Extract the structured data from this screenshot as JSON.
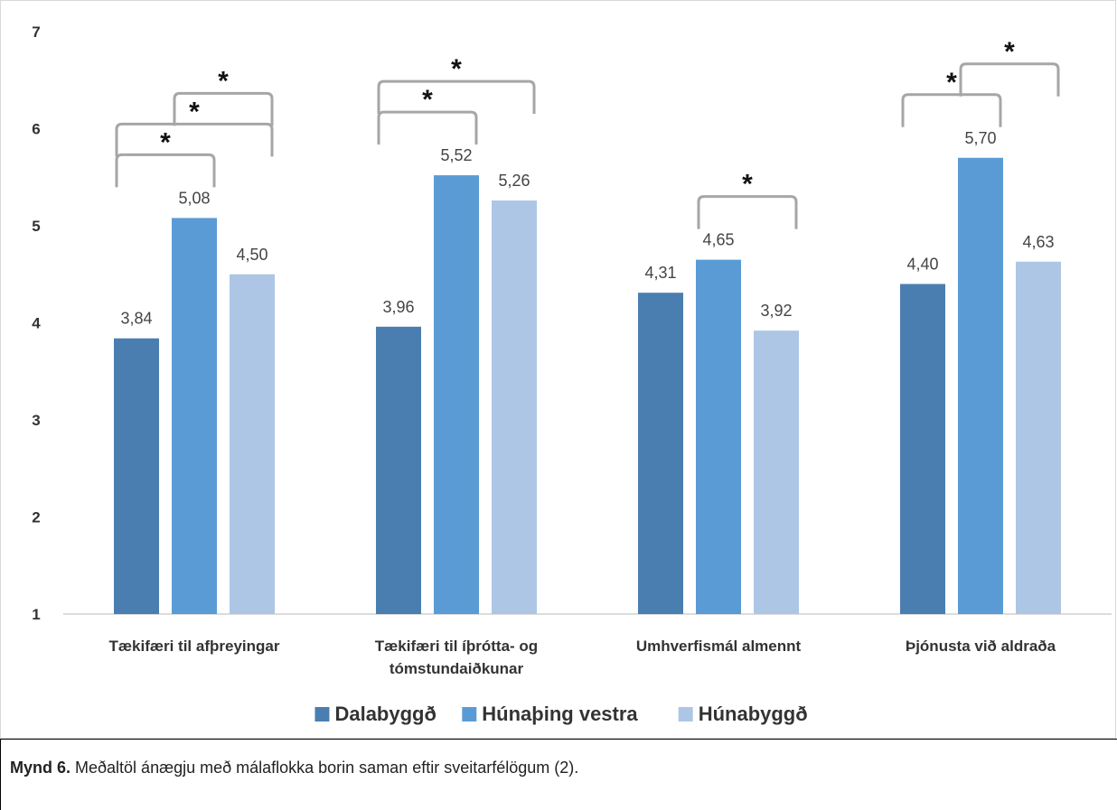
{
  "chart_data": {
    "type": "bar",
    "categories": [
      [
        "Tækifæri til afþreyingar"
      ],
      [
        "Tækifæri til íþrótta- og",
        "tómstundaiðkunar"
      ],
      [
        "Umhverfismál almennt"
      ],
      [
        "Þjónusta við aldraða"
      ]
    ],
    "series": [
      {
        "name": "Dalabyggð",
        "color": "#4a7eb0",
        "values": [
          3.84,
          3.96,
          4.31,
          4.4
        ],
        "labels": [
          "3,84",
          "3,96",
          "4,31",
          "4,40"
        ]
      },
      {
        "name": "Húnaþing vestra",
        "color": "#5b9bd5",
        "values": [
          5.08,
          5.52,
          4.65,
          5.7
        ],
        "labels": [
          "5,08",
          "5,52",
          "4,65",
          "5,70"
        ]
      },
      {
        "name": "Húnabyggð",
        "color": "#adc6e5",
        "values": [
          4.5,
          5.26,
          3.92,
          4.63
        ],
        "labels": [
          "4,50",
          "5,26",
          "3,92",
          "4,63"
        ]
      }
    ],
    "ylim": [
      1,
      7
    ],
    "yticks": [
      "1",
      "2",
      "3",
      "4",
      "5",
      "6",
      "7"
    ],
    "xlabel": "",
    "ylabel": "",
    "legend_position": "bottom",
    "significance": [
      {
        "category": 0,
        "from_series": 0,
        "to_series": 1,
        "label": "*"
      },
      {
        "category": 0,
        "from_series": 0,
        "to_series": 2,
        "label": "*"
      },
      {
        "category": 0,
        "from_series": 1,
        "to_series": 2,
        "label": "*"
      },
      {
        "category": 1,
        "from_series": 0,
        "to_series": 1,
        "label": "*"
      },
      {
        "category": 1,
        "from_series": 0,
        "to_series": 2,
        "label": "*"
      },
      {
        "category": 2,
        "from_series": 1,
        "to_series": 2,
        "label": "*"
      },
      {
        "category": 3,
        "from_series": 0,
        "to_series": 1,
        "label": "*"
      },
      {
        "category": 3,
        "from_series": 1,
        "to_series": 2,
        "label": "*"
      }
    ]
  },
  "caption": {
    "label": "Mynd 6.",
    "text": " Meðaltöl ánægju með málaflokka borin saman eftir sveitarfélögum (2)."
  }
}
